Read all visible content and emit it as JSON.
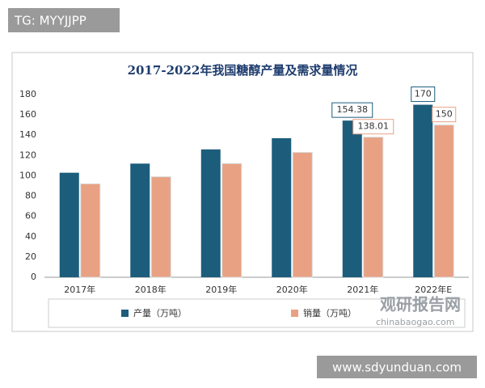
{
  "watermark_top": "TG: MYYJJPP",
  "watermark_logo": "观研报告网",
  "watermark_site": "chinabaogao.com",
  "watermark_bottom": "www.sdyunduan.com",
  "chart_data": {
    "type": "bar",
    "title": "2017-2022年我国糖醇产量及需求量情况",
    "categories": [
      "2017年",
      "2018年",
      "2019年",
      "2020年",
      "2021年",
      "2022年E"
    ],
    "series": [
      {
        "name": "产量（万吨）",
        "color": "#1d5d7c",
        "values": [
          103,
          112,
          126,
          137,
          154.38,
          170
        ],
        "value_labels": [
          null,
          null,
          null,
          null,
          "154.38",
          "170"
        ]
      },
      {
        "name": "销量（万吨）",
        "color": "#e8a183",
        "values": [
          92,
          99,
          112,
          123,
          138.01,
          150
        ],
        "value_labels": [
          null,
          null,
          null,
          null,
          "138.01",
          "150"
        ]
      }
    ],
    "ylim": [
      0,
      180
    ],
    "yticks": [
      0,
      20,
      40,
      60,
      80,
      100,
      120,
      140,
      160,
      180
    ],
    "grid": false,
    "legend": "bottom"
  }
}
